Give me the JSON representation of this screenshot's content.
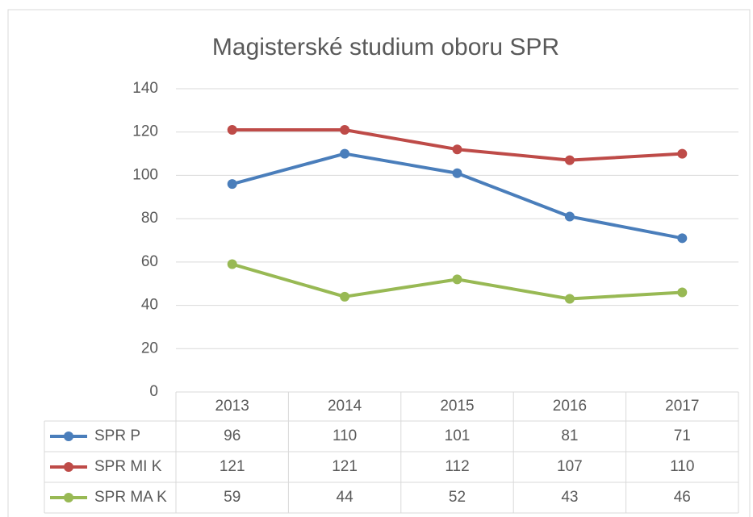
{
  "chart_data": {
    "type": "line",
    "title": "Magisterské studium oboru SPR",
    "categories": [
      "2013",
      "2014",
      "2015",
      "2016",
      "2017"
    ],
    "series": [
      {
        "name": "SPR P",
        "color": "#4a7ebb",
        "values": [
          96,
          110,
          101,
          81,
          71
        ]
      },
      {
        "name": "SPR MI K",
        "color": "#be4b48",
        "values": [
          121,
          121,
          112,
          107,
          110
        ]
      },
      {
        "name": "SPR MA K",
        "color": "#98b954",
        "values": [
          59,
          44,
          52,
          43,
          46
        ]
      }
    ],
    "ylim": [
      0,
      140
    ],
    "yticks": [
      0,
      20,
      40,
      60,
      80,
      100,
      120,
      140
    ],
    "grid": true,
    "data_table": true
  }
}
